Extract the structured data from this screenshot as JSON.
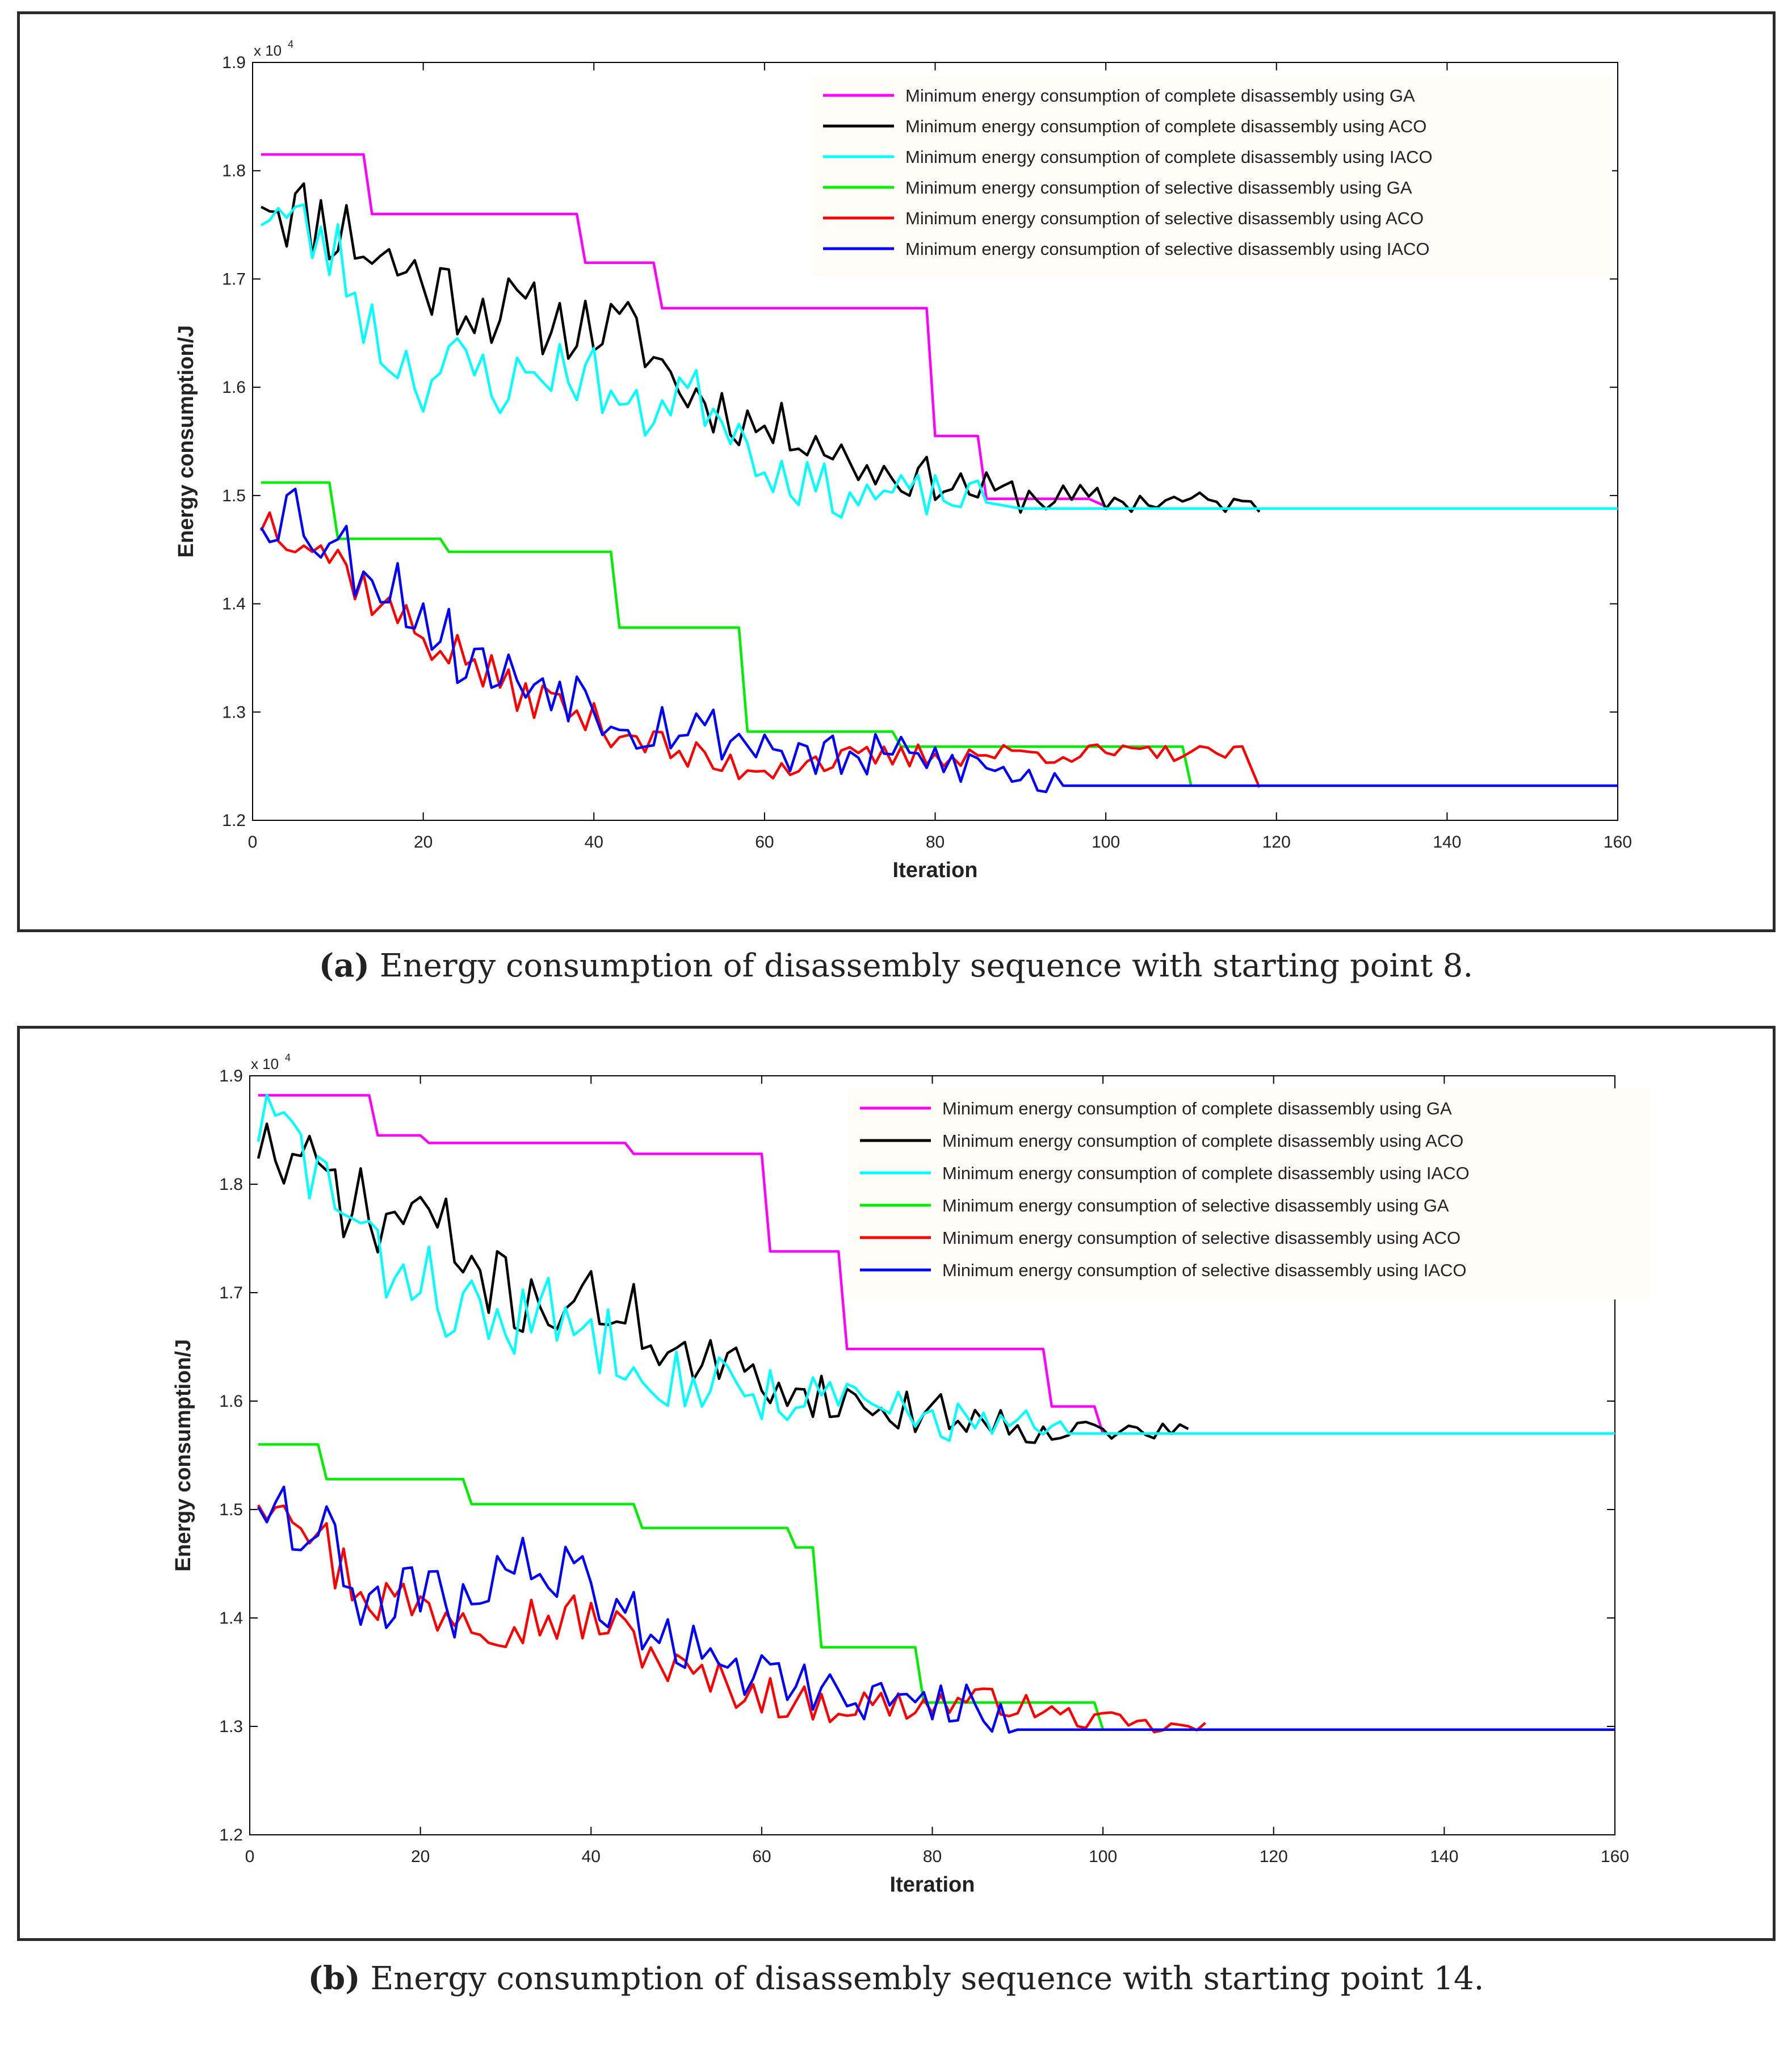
{
  "legend_labels": [
    "Minimum energy consumption of complete disassembly using GA",
    "Minimum energy consumption of complete disassembly using ACO",
    "Minimum energy consumption of complete disassembly using IACO",
    "Minimum energy consumption of selective disassembly using GA",
    "Minimum energy consumption of selective disassembly using ACO",
    "Minimum energy consumption of selective disassembly using IACO"
  ],
  "series_colors": [
    "#ff00ff",
    "#000000",
    "#00ffff",
    "#00ee00",
    "#ff0000",
    "#0000ff"
  ],
  "captions": {
    "a_label": "(a)",
    "a_text": " Energy consumption of disassembly sequence with starting point 8.",
    "b_label": "(b)",
    "b_text": " Energy consumption of disassembly sequence with starting point 14."
  },
  "chart_data": [
    {
      "id": "a",
      "type": "line",
      "xlabel": "Iteration",
      "ylabel": "Energy consumption/J",
      "multiplier": "x 10",
      "multiplier_exp": "4",
      "xlim": [
        0,
        160
      ],
      "ylim": [
        1.2,
        1.9
      ],
      "xticks": [
        0,
        20,
        40,
        60,
        80,
        100,
        120,
        140,
        160
      ],
      "yticks": [
        1.2,
        1.3,
        1.4,
        1.5,
        1.6,
        1.7,
        1.8,
        1.9
      ],
      "series": [
        {
          "name": "Minimum energy consumption of complete disassembly using GA",
          "kind": "steps",
          "x": [
            1,
            13,
            14,
            38,
            39,
            47,
            48,
            79,
            80,
            85,
            86,
            98,
            100
          ],
          "y": [
            1.815,
            1.815,
            1.76,
            1.76,
            1.715,
            1.715,
            1.673,
            1.673,
            1.555,
            1.555,
            1.497,
            1.497,
            1.49
          ]
        },
        {
          "name": "Minimum energy consumption of complete disassembly using ACO",
          "kind": "noisy",
          "start": 1,
          "end": 118,
          "anchors": [
            [
              1,
              1.79
            ],
            [
              5,
              1.76
            ],
            [
              10,
              1.75
            ],
            [
              15,
              1.72
            ],
            [
              20,
              1.7
            ],
            [
              25,
              1.68
            ],
            [
              30,
              1.67
            ],
            [
              35,
              1.66
            ],
            [
              40,
              1.655
            ],
            [
              45,
              1.65
            ],
            [
              50,
              1.6
            ],
            [
              55,
              1.58
            ],
            [
              60,
              1.56
            ],
            [
              65,
              1.56
            ],
            [
              70,
              1.53
            ],
            [
              75,
              1.52
            ],
            [
              80,
              1.515
            ],
            [
              85,
              1.505
            ],
            [
              90,
              1.5
            ],
            [
              95,
              1.497
            ],
            [
              100,
              1.495
            ],
            [
              110,
              1.495
            ],
            [
              118,
              1.49
            ]
          ],
          "amp": 0.045,
          "ampEnd": 0.008,
          "seed": 11
        },
        {
          "name": "Minimum energy consumption of complete disassembly using IACO",
          "kind": "noisy",
          "start": 1,
          "end": 160,
          "anchors": [
            [
              1,
              1.77
            ],
            [
              5,
              1.75
            ],
            [
              10,
              1.72
            ],
            [
              15,
              1.64
            ],
            [
              20,
              1.61
            ],
            [
              25,
              1.62
            ],
            [
              30,
              1.6
            ],
            [
              35,
              1.62
            ],
            [
              40,
              1.61
            ],
            [
              45,
              1.57
            ],
            [
              50,
              1.6
            ],
            [
              55,
              1.58
            ],
            [
              60,
              1.53
            ],
            [
              65,
              1.51
            ],
            [
              70,
              1.5
            ],
            [
              75,
              1.5
            ],
            [
              80,
              1.5
            ],
            [
              85,
              1.495
            ],
            [
              90,
              1.488
            ],
            [
              160,
              1.488
            ]
          ],
          "amp": 0.04,
          "ampEnd": 0.0,
          "settle": 86,
          "seed": 23
        },
        {
          "name": "Minimum energy consumption of selective disassembly using GA",
          "kind": "steps",
          "x": [
            1,
            9,
            10,
            22,
            23,
            42,
            43,
            57,
            58,
            75,
            76,
            109,
            110
          ],
          "y": [
            1.512,
            1.512,
            1.46,
            1.46,
            1.448,
            1.448,
            1.378,
            1.378,
            1.282,
            1.282,
            1.268,
            1.268,
            1.232
          ]
        },
        {
          "name": "Minimum energy consumption of selective disassembly using ACO",
          "kind": "noisy",
          "start": 1,
          "end": 118,
          "anchors": [
            [
              1,
              1.48
            ],
            [
              5,
              1.47
            ],
            [
              10,
              1.44
            ],
            [
              15,
              1.4
            ],
            [
              20,
              1.37
            ],
            [
              25,
              1.35
            ],
            [
              30,
              1.32
            ],
            [
              35,
              1.31
            ],
            [
              40,
              1.29
            ],
            [
              45,
              1.28
            ],
            [
              50,
              1.26
            ],
            [
              55,
              1.25
            ],
            [
              60,
              1.25
            ],
            [
              65,
              1.255
            ],
            [
              70,
              1.255
            ],
            [
              80,
              1.26
            ],
            [
              90,
              1.262
            ],
            [
              100,
              1.262
            ],
            [
              110,
              1.262
            ],
            [
              116,
              1.262
            ],
            [
              118,
              1.232
            ]
          ],
          "amp": 0.025,
          "ampEnd": 0.006,
          "seed": 37
        },
        {
          "name": "Minimum energy consumption of selective disassembly using IACO",
          "kind": "noisy",
          "start": 1,
          "end": 160,
          "anchors": [
            [
              1,
              1.49
            ],
            [
              5,
              1.49
            ],
            [
              10,
              1.45
            ],
            [
              15,
              1.43
            ],
            [
              20,
              1.39
            ],
            [
              25,
              1.35
            ],
            [
              30,
              1.33
            ],
            [
              35,
              1.33
            ],
            [
              40,
              1.31
            ],
            [
              45,
              1.29
            ],
            [
              50,
              1.29
            ],
            [
              55,
              1.28
            ],
            [
              60,
              1.27
            ],
            [
              65,
              1.26
            ],
            [
              70,
              1.255
            ],
            [
              75,
              1.26
            ],
            [
              80,
              1.255
            ],
            [
              85,
              1.25
            ],
            [
              90,
              1.24
            ],
            [
              95,
              1.232
            ],
            [
              160,
              1.232
            ]
          ],
          "amp": 0.04,
          "ampEnd": 0.0,
          "settle": 95,
          "seed": 53
        }
      ]
    },
    {
      "id": "b",
      "type": "line",
      "xlabel": "Iteration",
      "ylabel": "Energy consumption/J",
      "multiplier": "x 10",
      "multiplier_exp": "4",
      "xlim": [
        0,
        160
      ],
      "ylim": [
        1.2,
        1.9
      ],
      "xticks": [
        0,
        20,
        40,
        60,
        80,
        100,
        120,
        140,
        160
      ],
      "yticks": [
        1.2,
        1.3,
        1.4,
        1.5,
        1.6,
        1.7,
        1.8,
        1.9
      ],
      "series": [
        {
          "name": "Minimum energy consumption of complete disassembly using GA",
          "kind": "steps",
          "x": [
            1,
            14,
            15,
            20,
            21,
            44,
            45,
            60,
            61,
            69,
            70,
            93,
            94,
            99,
            100
          ],
          "y": [
            1.882,
            1.882,
            1.845,
            1.845,
            1.838,
            1.838,
            1.828,
            1.828,
            1.738,
            1.738,
            1.648,
            1.648,
            1.595,
            1.595,
            1.57
          ]
        },
        {
          "name": "Minimum energy consumption of complete disassembly using ACO",
          "kind": "noisy",
          "start": 1,
          "end": 110,
          "anchors": [
            [
              1,
              1.845
            ],
            [
              5,
              1.81
            ],
            [
              10,
              1.8
            ],
            [
              15,
              1.76
            ],
            [
              20,
              1.78
            ],
            [
              25,
              1.73
            ],
            [
              30,
              1.7
            ],
            [
              35,
              1.69
            ],
            [
              40,
              1.69
            ],
            [
              45,
              1.68
            ],
            [
              50,
              1.64
            ],
            [
              55,
              1.63
            ],
            [
              60,
              1.62
            ],
            [
              65,
              1.61
            ],
            [
              70,
              1.6
            ],
            [
              75,
              1.59
            ],
            [
              80,
              1.59
            ],
            [
              85,
              1.585
            ],
            [
              90,
              1.575
            ],
            [
              95,
              1.575
            ],
            [
              100,
              1.572
            ],
            [
              110,
              1.572
            ]
          ],
          "amp": 0.045,
          "ampEnd": 0.008,
          "seed": 71
        },
        {
          "name": "Minimum energy consumption of complete disassembly using IACO",
          "kind": "noisy",
          "start": 1,
          "end": 160,
          "anchors": [
            [
              1,
              1.86
            ],
            [
              5,
              1.84
            ],
            [
              10,
              1.79
            ],
            [
              15,
              1.72
            ],
            [
              20,
              1.72
            ],
            [
              25,
              1.68
            ],
            [
              30,
              1.67
            ],
            [
              35,
              1.68
            ],
            [
              40,
              1.66
            ],
            [
              45,
              1.65
            ],
            [
              50,
              1.62
            ],
            [
              55,
              1.62
            ],
            [
              60,
              1.61
            ],
            [
              65,
              1.6
            ],
            [
              70,
              1.6
            ],
            [
              75,
              1.59
            ],
            [
              80,
              1.585
            ],
            [
              85,
              1.58
            ],
            [
              90,
              1.575
            ],
            [
              95,
              1.57
            ],
            [
              160,
              1.57
            ]
          ],
          "amp": 0.045,
          "ampEnd": 0.0,
          "settle": 96,
          "seed": 83
        },
        {
          "name": "Minimum energy consumption of selective disassembly using GA",
          "kind": "steps",
          "x": [
            1,
            8,
            9,
            25,
            26,
            45,
            46,
            63,
            64,
            66,
            67,
            78,
            79,
            99,
            100
          ],
          "y": [
            1.56,
            1.56,
            1.528,
            1.528,
            1.505,
            1.505,
            1.483,
            1.483,
            1.465,
            1.465,
            1.373,
            1.373,
            1.322,
            1.322,
            1.297
          ]
        },
        {
          "name": "Minimum energy consumption of selective disassembly using ACO",
          "kind": "noisy",
          "start": 1,
          "end": 112,
          "anchors": [
            [
              1,
              1.52
            ],
            [
              5,
              1.52
            ],
            [
              10,
              1.45
            ],
            [
              15,
              1.42
            ],
            [
              20,
              1.41
            ],
            [
              25,
              1.41
            ],
            [
              30,
              1.4
            ],
            [
              35,
              1.4
            ],
            [
              40,
              1.4
            ],
            [
              45,
              1.38
            ],
            [
              50,
              1.35
            ],
            [
              55,
              1.34
            ],
            [
              60,
              1.33
            ],
            [
              65,
              1.32
            ],
            [
              70,
              1.32
            ],
            [
              75,
              1.32
            ],
            [
              80,
              1.32
            ],
            [
              85,
              1.325
            ],
            [
              90,
              1.32
            ],
            [
              95,
              1.31
            ],
            [
              100,
              1.305
            ],
            [
              105,
              1.3
            ],
            [
              112,
              1.298
            ]
          ],
          "amp": 0.035,
          "ampEnd": 0.006,
          "seed": 97
        },
        {
          "name": "Minimum energy consumption of selective disassembly using IACO",
          "kind": "noisy",
          "start": 1,
          "end": 160,
          "anchors": [
            [
              1,
              1.52
            ],
            [
              5,
              1.5
            ],
            [
              10,
              1.46
            ],
            [
              15,
              1.4
            ],
            [
              20,
              1.42
            ],
            [
              25,
              1.41
            ],
            [
              30,
              1.45
            ],
            [
              35,
              1.44
            ],
            [
              40,
              1.43
            ],
            [
              45,
              1.4
            ],
            [
              50,
              1.38
            ],
            [
              55,
              1.36
            ],
            [
              60,
              1.35
            ],
            [
              65,
              1.34
            ],
            [
              70,
              1.33
            ],
            [
              75,
              1.325
            ],
            [
              80,
              1.32
            ],
            [
              85,
              1.32
            ],
            [
              90,
              1.297
            ],
            [
              160,
              1.297
            ]
          ],
          "amp": 0.04,
          "ampEnd": 0.0,
          "settle": 90,
          "seed": 109
        }
      ]
    }
  ]
}
